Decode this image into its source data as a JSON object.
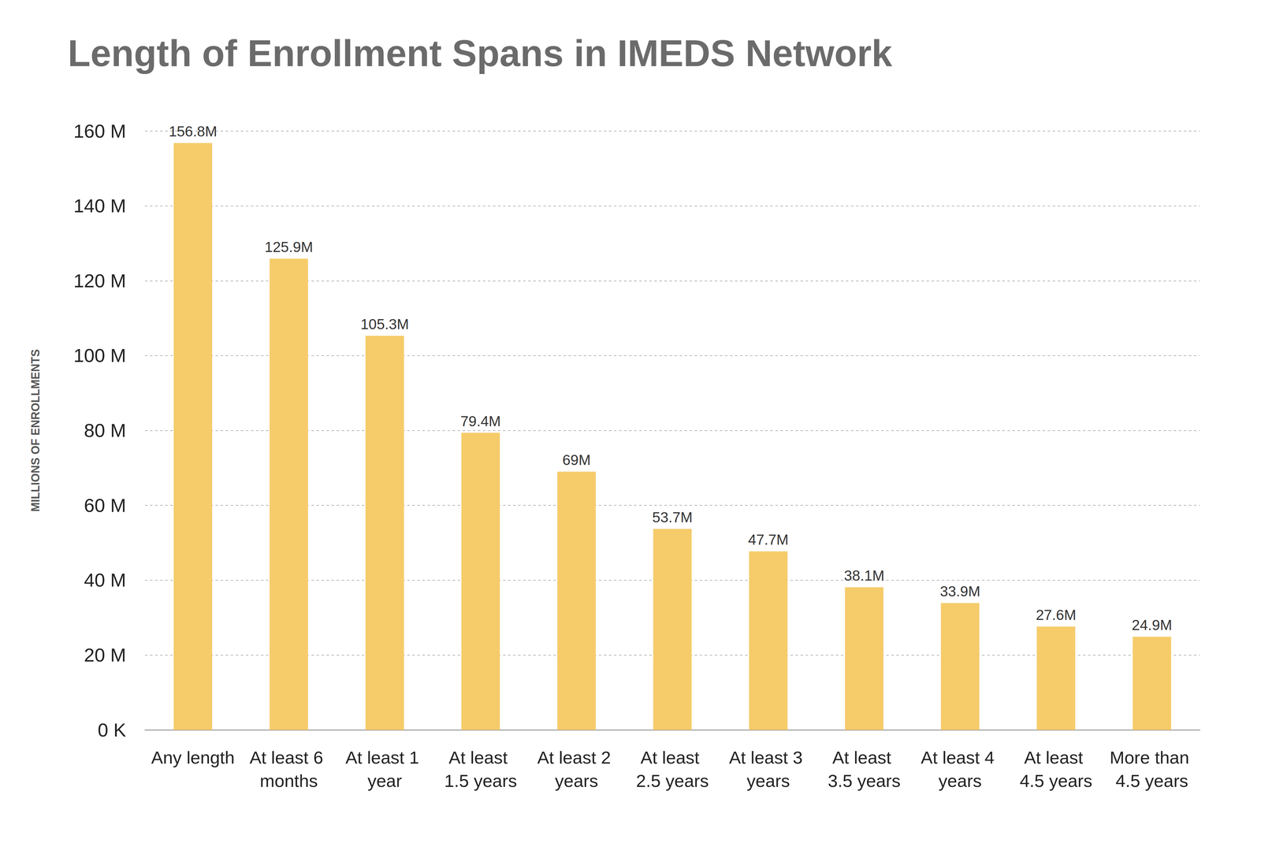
{
  "chart_data": {
    "type": "bar",
    "title": "Length of Enrollment Spans in IMEDS Network",
    "ylabel": "MILLIONS OF ENROLLMENTS",
    "categories": [
      "Any length",
      "At least 6 months",
      "At least 1 year",
      "At least 1.5 years",
      "At least 2 years",
      "At least 2.5 years",
      "At least 3 years",
      "At least 3.5 years",
      "At least 4 years",
      "At least 4.5 years",
      "More than 4.5 years"
    ],
    "values": [
      156.8,
      125.9,
      105.3,
      79.4,
      69,
      53.7,
      47.7,
      38.1,
      33.9,
      27.6,
      24.9
    ],
    "value_labels": [
      "156.8M",
      "125.9M",
      "105.3M",
      "79.4M",
      "69M",
      "53.7M",
      "47.7M",
      "38.1M",
      "33.9M",
      "27.6M",
      "24.9M"
    ],
    "color": "#f6cb6a",
    "ylim": [
      0,
      160
    ],
    "yticks": [
      {
        "value": 0,
        "label": "0 K"
      },
      {
        "value": 20,
        "label": "20 M"
      },
      {
        "value": 40,
        "label": "40 M"
      },
      {
        "value": 60,
        "label": "60 M"
      },
      {
        "value": 80,
        "label": "80 M"
      },
      {
        "value": 100,
        "label": "100 M"
      },
      {
        "value": 120,
        "label": "120 M"
      },
      {
        "value": 140,
        "label": "140 M"
      },
      {
        "value": 160,
        "label": "160 M"
      }
    ],
    "grid": true,
    "data_labels": true
  }
}
